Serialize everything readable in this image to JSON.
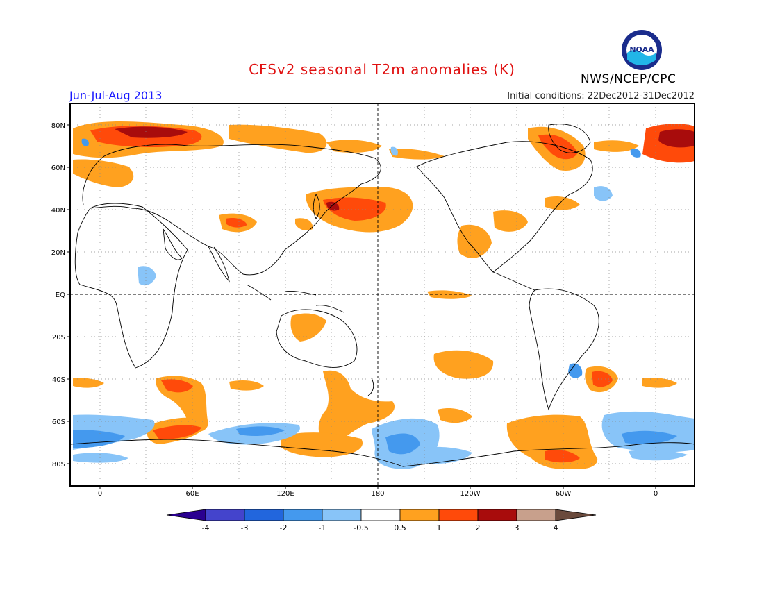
{
  "header": {
    "title": "CFSv2 seasonal T2m anomalies (K)",
    "period": "Jun-Jul-Aug 2013",
    "initial_conditions": "Initial conditions: 22Dec2012-31Dec2012",
    "agency": "NWS/NCEP/CPC",
    "logo_text": "NOAA"
  },
  "map": {
    "lat_labels": [
      "80N",
      "60N",
      "40N",
      "20N",
      "EQ",
      "20S",
      "40S",
      "60S",
      "80S"
    ],
    "lon_labels": [
      "0",
      "60E",
      "120E",
      "180",
      "120W",
      "60W",
      "0"
    ],
    "projection": "cylindrical equidistant, centered 180"
  },
  "colorbar": {
    "labels": [
      "-4",
      "-3",
      "-2",
      "-1",
      "-0.5",
      "0.5",
      "1",
      "2",
      "3",
      "4"
    ],
    "colors": [
      "#2a0090",
      "#4444cc",
      "#2266dd",
      "#4499ee",
      "#88c4f8",
      "#ffffff",
      "#ffa11f",
      "#ff4a0a",
      "#a80c0c",
      "#c8a08c",
      "#6a4a3c"
    ],
    "units": "K"
  }
}
